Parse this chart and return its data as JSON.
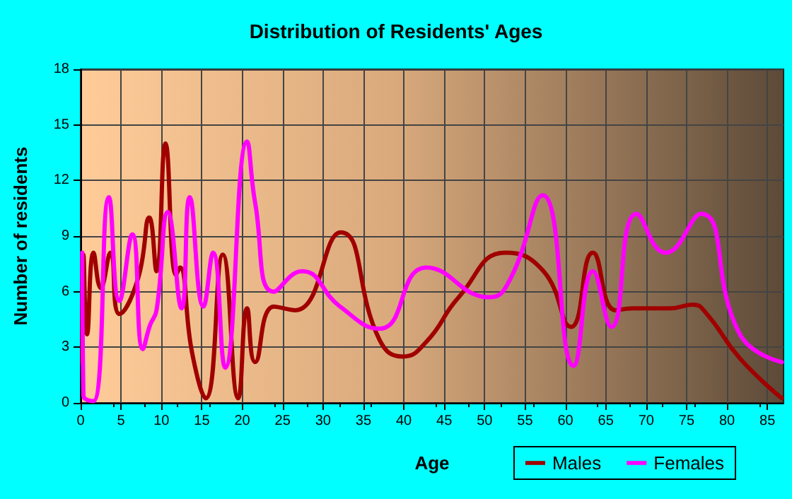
{
  "chart_data": {
    "type": "line",
    "title": "Distribution of Residents' Ages",
    "xlabel": "Age",
    "ylabel": "Number of residents",
    "xlim": [
      0,
      87
    ],
    "xticks": [
      0,
      5,
      10,
      15,
      20,
      25,
      30,
      35,
      40,
      45,
      50,
      55,
      60,
      65,
      70,
      75,
      80,
      85
    ],
    "ylim": [
      0,
      18
    ],
    "yticks": [
      0,
      3,
      6,
      9,
      12,
      15,
      18
    ],
    "grid": true,
    "legend": "bottom right",
    "marker": "none",
    "line_style": "solid",
    "series": [
      {
        "name": "Males",
        "color": "#a00000",
        "x": [
          0.2,
          0.35,
          0.8,
          1.6,
          2.5,
          3.7,
          4.8,
          7.1,
          8.5,
          9.4,
          10.5,
          11.8,
          12.3,
          13.8,
          15.5,
          17.6,
          19.5,
          20.6,
          21.6,
          23.9,
          26.6,
          32.2,
          37,
          39.9,
          42.8,
          46.8,
          52.6,
          57.3,
          60.7,
          63.4,
          66.2,
          68.3,
          72.9,
          75.8,
          77.5,
          81.6,
          86.8
        ],
        "values": [
          2.2,
          8,
          3.7,
          8.1,
          6.2,
          8.1,
          4.8,
          6.7,
          10,
          7.1,
          14,
          6.9,
          7.3,
          2.7,
          0.25,
          8,
          0.25,
          5.1,
          2.2,
          5.2,
          5,
          9.2,
          3.4,
          2.5,
          3.3,
          5.7,
          8.1,
          7.1,
          4.1,
          8.1,
          5,
          5.1,
          5.1,
          5.3,
          4.8,
          2.4,
          0.25
        ]
      },
      {
        "name": "Females",
        "color": "#ff00ff",
        "x": [
          0.2,
          0.35,
          1.6,
          3.5,
          4.8,
          6.4,
          7.7,
          8.6,
          9.4,
          10.8,
          12.5,
          13.5,
          15.2,
          16.4,
          17.9,
          20.6,
          21.6,
          23.9,
          27.4,
          32.1,
          37,
          42.8,
          50.6,
          53.2,
          57.2,
          61,
          63.4,
          65.7,
          68.8,
          72.4,
          76.8,
          81.6,
          86.8
        ],
        "values": [
          8.1,
          0.4,
          0.1,
          11.1,
          5.5,
          9.1,
          2.9,
          4.2,
          5,
          10.3,
          5.1,
          11.1,
          5.2,
          8.1,
          1.9,
          14.1,
          10.8,
          6,
          7.1,
          5.2,
          4,
          7.3,
          5.7,
          6.7,
          11.2,
          2,
          7.1,
          4.1,
          10.2,
          8.1,
          10.2,
          3.7,
          2.2
        ]
      }
    ]
  }
}
